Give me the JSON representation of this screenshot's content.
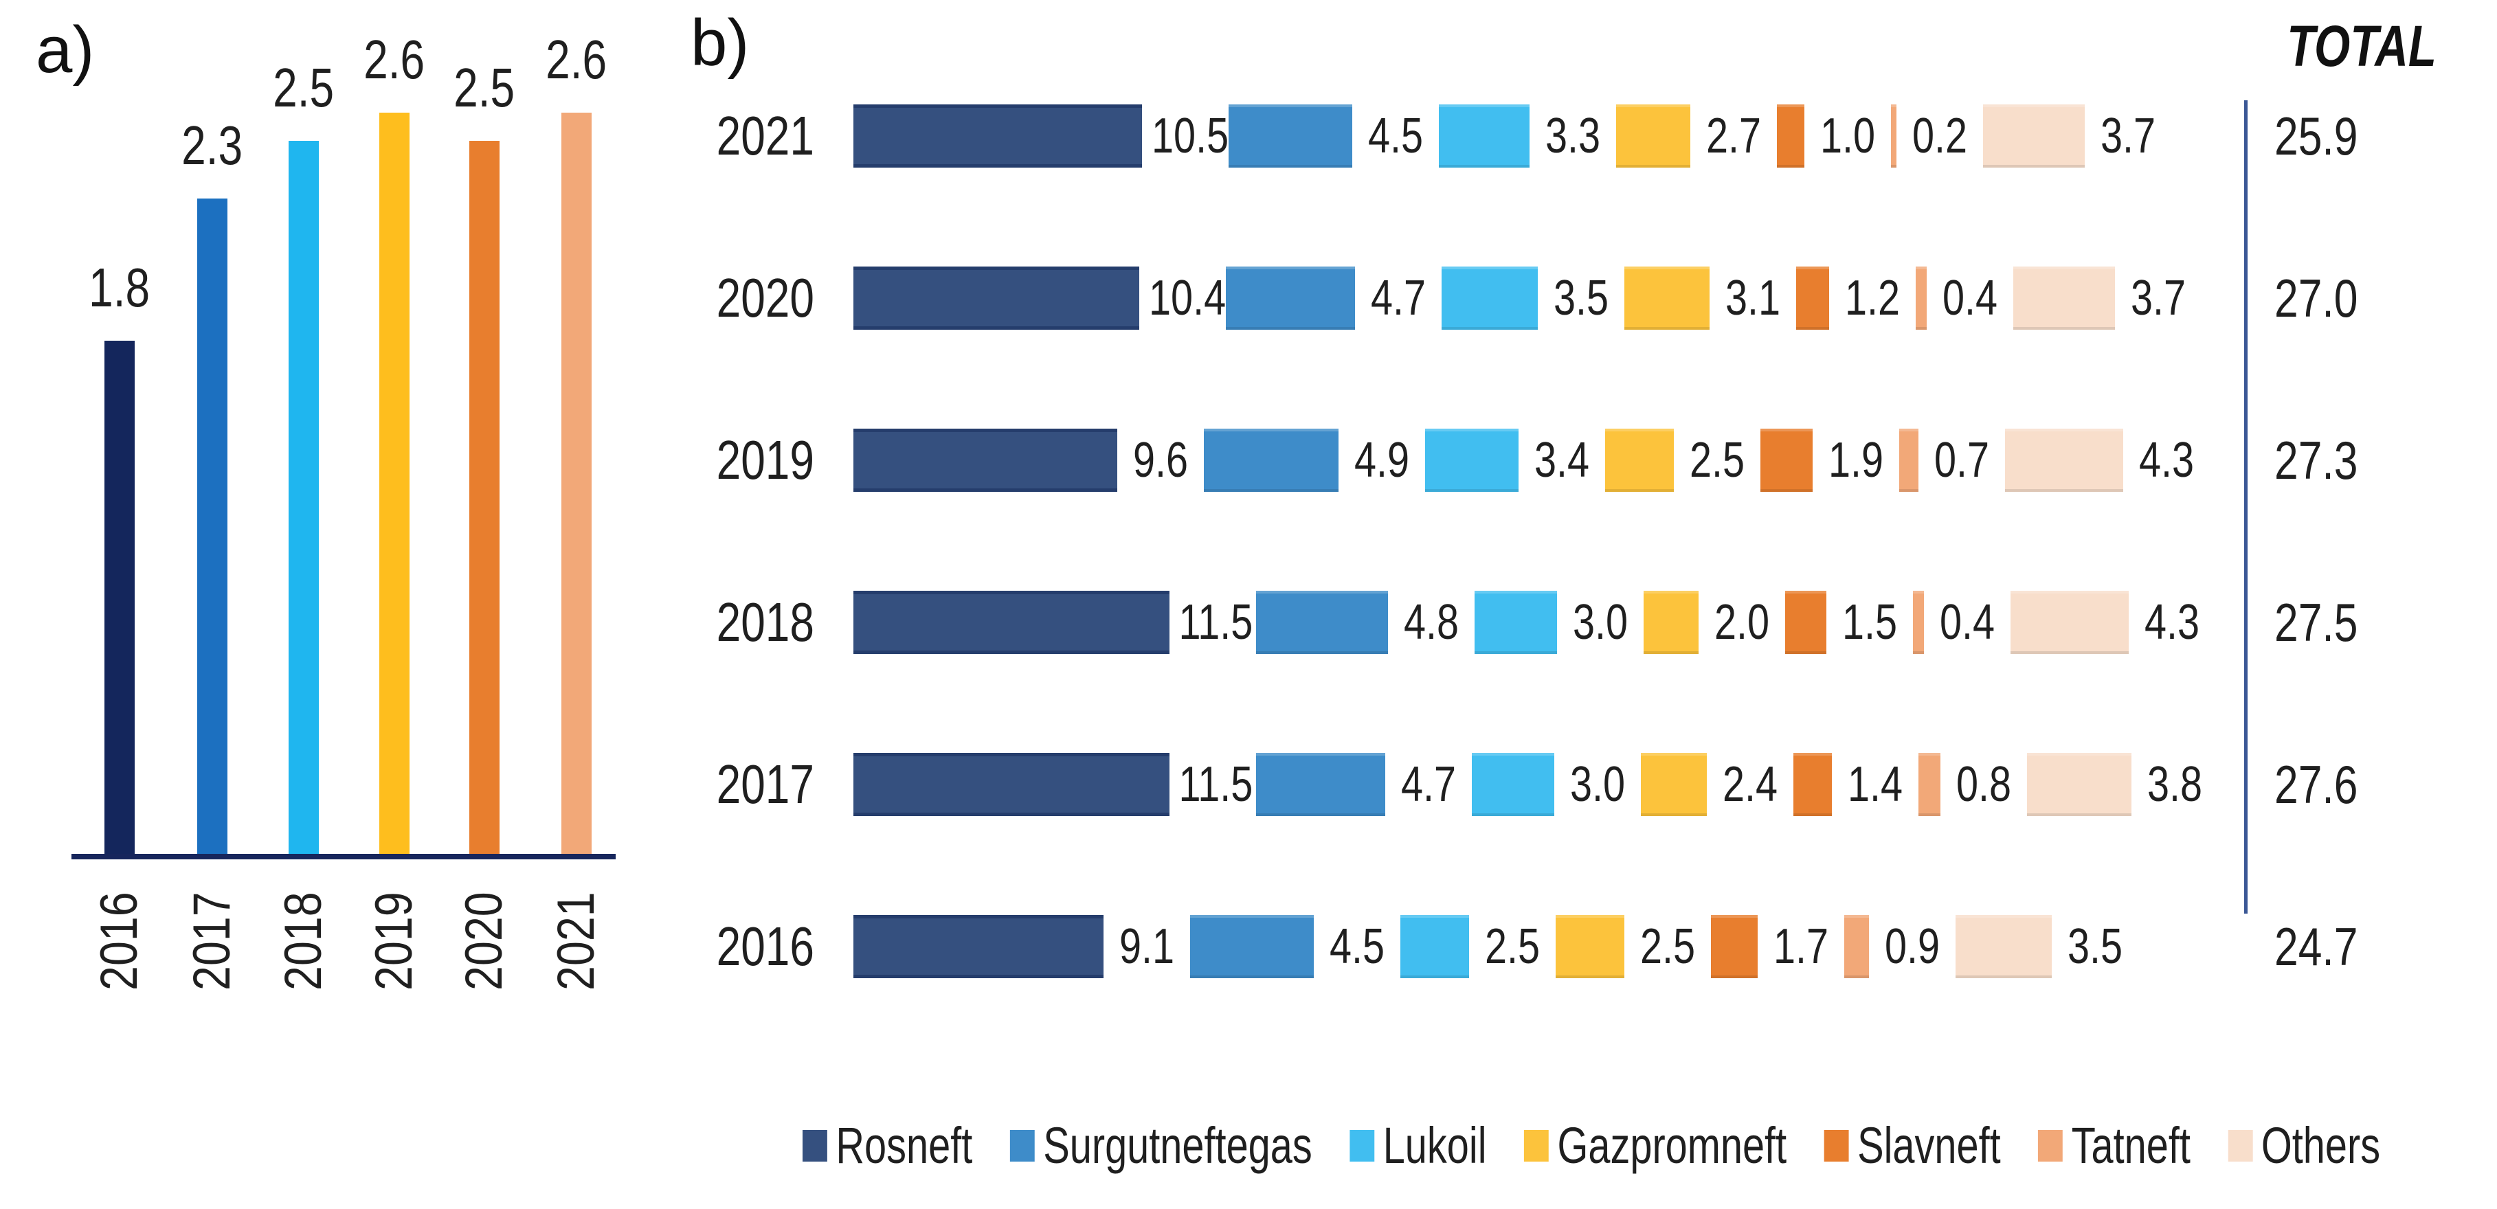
{
  "chart_data": [
    {
      "id": "a",
      "type": "bar",
      "panel_label": "a)",
      "categories": [
        "2016",
        "2017",
        "2018",
        "2019",
        "2020",
        "2021"
      ],
      "values": [
        1.8,
        2.3,
        2.5,
        2.6,
        2.5,
        2.6
      ],
      "bar_colors": [
        "#14265C",
        "#1C70C0",
        "#1FB6EF",
        "#FEBE1E",
        "#E87E2E",
        "#F2A878"
      ],
      "axis_color": "#17265C",
      "ylim": [
        0,
        2.6
      ],
      "grid": false,
      "data_labels": [
        "1.8",
        "2.3",
        "2.5",
        "2.6",
        "2.5",
        "2.6"
      ]
    },
    {
      "id": "b",
      "type": "stacked-bar-horizontal",
      "panel_label": "b)",
      "total_header": "TOTAL",
      "categories": [
        "2021",
        "2020",
        "2019",
        "2018",
        "2017",
        "2016"
      ],
      "series": [
        {
          "name": "Rosneft",
          "color": "#35507F",
          "values": [
            10.5,
            10.4,
            9.6,
            11.5,
            11.5,
            9.1
          ]
        },
        {
          "name": "Surgutneftegas",
          "color": "#3E8CC9",
          "values": [
            4.5,
            4.7,
            4.9,
            4.8,
            4.7,
            4.5
          ]
        },
        {
          "name": "Lukoil",
          "color": "#41BEF0",
          "values": [
            3.3,
            3.5,
            3.4,
            3.0,
            3.0,
            2.5
          ]
        },
        {
          "name": "Gazpromneft",
          "color": "#FCC33C",
          "values": [
            2.7,
            3.1,
            2.5,
            2.0,
            2.4,
            2.5
          ]
        },
        {
          "name": "Slavneft",
          "color": "#E87E2E",
          "values": [
            1.0,
            1.2,
            1.9,
            1.5,
            1.4,
            1.7
          ]
        },
        {
          "name": "Tatneft",
          "color": "#F2A878",
          "values": [
            0.2,
            0.4,
            0.7,
            0.4,
            0.8,
            0.9
          ]
        },
        {
          "name": "Others",
          "color": "#F8DECB",
          "values": [
            3.7,
            3.7,
            4.3,
            4.3,
            3.8,
            3.5
          ]
        }
      ],
      "totals": [
        25.9,
        27.0,
        27.3,
        27.5,
        27.6,
        24.7
      ],
      "separator_line_color": "#3A5795",
      "legend_position": "bottom",
      "grid": false
    }
  ]
}
